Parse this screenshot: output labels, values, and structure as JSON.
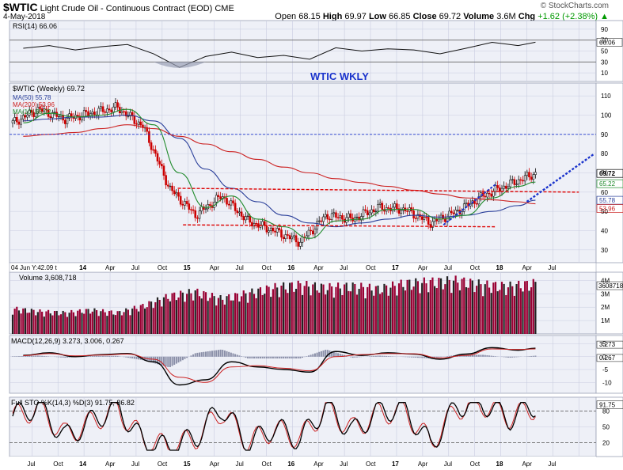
{
  "header": {
    "symbol": "$WTIC",
    "name": "Light Crude Oil - Continuous Contract (EOD)",
    "exchange": "CME",
    "date": "4-May-2018",
    "logo": "© StockCharts.com",
    "open_label": "Open",
    "open": "68.15",
    "high_label": "High",
    "high": "69.97",
    "low_label": "Low",
    "low": "66.85",
    "close_label": "Close",
    "close": "69.72",
    "volume_label": "Volume",
    "volume": "3.6M",
    "chg_label": "Chg",
    "chg": "+1.62 (+2.38%)",
    "chg_arrow": "▲"
  },
  "colors": {
    "up": "#111111",
    "down": "#cc0000",
    "ma50": "#2a3f9a",
    "ma200": "#cc2222",
    "ma10": "#1f8a2a",
    "volume": "#990033",
    "annotation": "#1a33cc",
    "panel_bg": "#eef0f7"
  },
  "rsi_panel": {
    "label": "RSI(14) 66.06",
    "levels": [
      "90",
      "70",
      "50",
      "30",
      "10"
    ],
    "value_tag": "66.06",
    "annotation": "WTIC WKLY"
  },
  "price_panel": {
    "label": "$WTIC (Weekly) 69.72",
    "legend": [
      {
        "text": "MA(50) 55.78",
        "color": "#2a3f9a"
      },
      {
        "text": "MA(200) 53.96",
        "color": "#cc2222"
      },
      {
        "text": "MA(10) 65.22",
        "color": "#1f8a2a"
      }
    ],
    "y_ticks": [
      "110",
      "100",
      "90",
      "80",
      "70",
      "60",
      "50",
      "40",
      "30"
    ],
    "value_tags": [
      "69.72",
      "65.22",
      "55.78",
      "53.96"
    ],
    "date_stamp": "04 Jun Y:42.09 t"
  },
  "volume_panel": {
    "label": "Volume 3,608,718",
    "y_ticks": [
      "4M",
      "3M",
      "2M",
      "1M"
    ],
    "value_tag": "3608718"
  },
  "macd_panel": {
    "label": "MACD(12,26,9) 3.273, 3.006, 0.267",
    "y_ticks": [
      "5",
      "0",
      "-5",
      "-10"
    ],
    "value_tags": [
      "3.273",
      "0.267"
    ]
  },
  "sto_panel": {
    "label": "Full STO %K(14,3) %D(3) 91.75, 86.82",
    "y_ticks": [
      "80",
      "50",
      "20"
    ],
    "value_tag": "91.75"
  },
  "x_axis": {
    "top_labels": [
      "14",
      "Apr",
      "Jul",
      "Oct",
      "15",
      "Apr",
      "Jul",
      "Oct",
      "16",
      "Apr",
      "Jul",
      "Oct",
      "17",
      "Apr",
      "Jul",
      "Oct",
      "18",
      "Apr",
      "Jul"
    ],
    "bottom_labels": [
      "Jul",
      "Oct",
      "14",
      "Apr",
      "Jul",
      "Oct",
      "15",
      "Apr",
      "Jul",
      "Oct",
      "16",
      "Apr",
      "Jul",
      "Oct",
      "17",
      "Apr",
      "Jul",
      "Oct",
      "18",
      "Apr",
      "Jul"
    ]
  },
  "chart_data": {
    "type": "line",
    "title": "$WTIC Light Crude Oil - Continuous Contract (EOD) CME",
    "interval": "Weekly",
    "x_dates": [
      "2013-06",
      "2013-09",
      "2013-12",
      "2014-03",
      "2014-06",
      "2014-09",
      "2014-12",
      "2015-03",
      "2015-06",
      "2015-09",
      "2015-12",
      "2016-03",
      "2016-06",
      "2016-09",
      "2016-12",
      "2017-03",
      "2017-06",
      "2017-09",
      "2017-12",
      "2018-03",
      "2018-05"
    ],
    "ylim": [
      25,
      115
    ],
    "series": [
      {
        "name": "$WTIC",
        "values": [
          96,
          103,
          98,
          101,
          104,
          94,
          62,
          48,
          58,
          45,
          40,
          34,
          48,
          46,
          52,
          51,
          44,
          50,
          58,
          64,
          69.72
        ]
      },
      {
        "name": "MA(50)",
        "values": [
          97,
          98,
          99,
          99,
          100,
          97,
          88,
          72,
          62,
          55,
          48,
          44,
          42,
          44,
          46,
          48,
          47,
          48,
          50,
          53,
          55.78
        ]
      },
      {
        "name": "MA(200)",
        "values": [
          89,
          90,
          91,
          93,
          95,
          93,
          89,
          85,
          81,
          77,
          73,
          70,
          67,
          65,
          63,
          61,
          59,
          57,
          56,
          55,
          53.96
        ]
      },
      {
        "name": "MA(10)",
        "values": [
          96,
          101,
          99,
          100,
          103,
          95,
          70,
          52,
          58,
          46,
          42,
          36,
          45,
          46,
          51,
          51,
          46,
          48,
          57,
          63,
          65.22
        ]
      }
    ],
    "annotations": {
      "horizontal_resistance": 90,
      "support_lines": [
        62,
        43,
        42
      ],
      "trend_channel_upper": [
        [
          2017.5,
          45
        ],
        [
          2018.7,
          80
        ]
      ],
      "breakout_level": 60
    },
    "rsi": {
      "ylim": [
        0,
        100
      ],
      "values": [
        55,
        60,
        52,
        58,
        62,
        45,
        20,
        40,
        48,
        38,
        42,
        35,
        56,
        50,
        54,
        52,
        45,
        55,
        66,
        60,
        66.06
      ]
    },
    "volume": {
      "ylim": [
        0,
        4500000
      ],
      "values": [
        1800000,
        1600000,
        1500000,
        1700000,
        1500000,
        2000000,
        2700000,
        3000000,
        2500000,
        2900000,
        3300000,
        3500000,
        3300000,
        3400000,
        3200000,
        3600000,
        3700000,
        3800000,
        3500000,
        3400000,
        3608718
      ]
    },
    "macd": {
      "ylim": [
        -13,
        7
      ],
      "values": [
        0.5,
        1.5,
        0,
        0.8,
        1.2,
        -2,
        -11,
        -9,
        -2,
        -4,
        -5,
        -6,
        2,
        0.5,
        1.5,
        1,
        -1,
        1,
        3.5,
        2.5,
        3.273
      ],
      "signal": [
        0.4,
        1.2,
        0.3,
        0.6,
        1,
        -1,
        -8,
        -10,
        -4,
        -3.5,
        -4.5,
        -5.5,
        0,
        0.8,
        1.2,
        1.1,
        -0.5,
        0.5,
        3,
        2.8,
        3.006
      ]
    },
    "stochastic": {
      "ylim": [
        0,
        100
      ],
      "k": [
        70,
        90,
        30,
        60,
        90,
        20,
        10,
        30,
        88,
        15,
        50,
        25,
        90,
        40,
        80,
        85,
        15,
        90,
        95,
        65,
        91.75
      ],
      "d": [
        68,
        85,
        35,
        58,
        85,
        25,
        12,
        28,
        80,
        20,
        45,
        28,
        85,
        45,
        75,
        80,
        20,
        85,
        92,
        68,
        86.82
      ]
    }
  }
}
